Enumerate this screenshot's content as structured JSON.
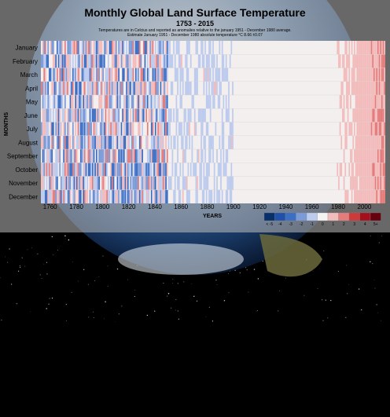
{
  "title": "Monthly Global Land Surface Temperature",
  "subtitle": "1753 - 2015",
  "note_line1": "Temperatures are in Celcius and reported as anomalies relative to the january 1951 - December 1980 average.",
  "note_line2": "Estimate January 1951 - December 1980 absolute temperature °C 8.66 ±0.07",
  "chart_data": {
    "type": "heatmap",
    "title": "Monthly Global Land Surface Temperature",
    "subtitle": "1753 - 2015",
    "xlabel": "YEARS",
    "ylabel": "MONTHS",
    "xlim": [
      1753,
      2015
    ],
    "x_ticks": [
      1760,
      1780,
      1800,
      1820,
      1840,
      1860,
      1880,
      1900,
      1920,
      1940,
      1960,
      1980,
      2000
    ],
    "months": [
      "January",
      "February",
      "March",
      "April",
      "May",
      "June",
      "July",
      "August",
      "September",
      "October",
      "November",
      "December"
    ],
    "legend": {
      "labels": [
        "< -5",
        "-4",
        "-3",
        "-2",
        "-1",
        "0",
        "1",
        "2",
        "3",
        "4",
        "5+"
      ],
      "colors": [
        "#08306b",
        "#2150a8",
        "#3c6ec4",
        "#7b9bd8",
        "#bccbee",
        "#f5f2f2",
        "#f3bcbc",
        "#e47c7c",
        "#cd3a3a",
        "#a3101c",
        "#67000d"
      ]
    }
  }
}
